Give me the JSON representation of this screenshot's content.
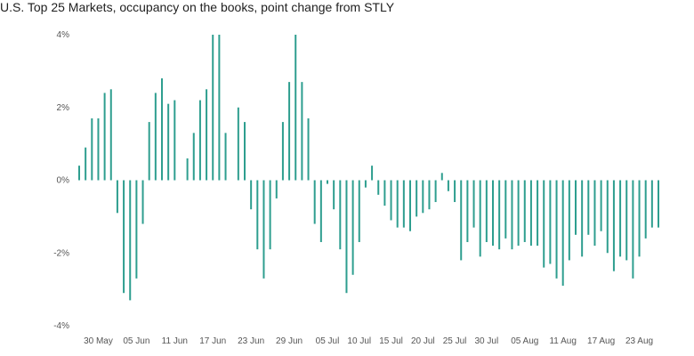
{
  "title": "U.S. Top 25 Markets, occupancy on the books, point change from STLY",
  "chart_data": {
    "type": "bar",
    "title": "U.S. Top 25 Markets, occupancy on the books, point change from STLY",
    "xlabel": "",
    "ylabel": "",
    "ylim": [
      -4,
      4
    ],
    "y_ticks": [
      4,
      2,
      0,
      -2,
      -4
    ],
    "y_tick_labels": [
      "4%",
      "2%",
      "0%",
      "-2%",
      "-4%"
    ],
    "grid": false,
    "bar_color": "#2e9e8f",
    "x_start_date": "2024-05-27",
    "x_tick_labels": [
      {
        "index": 3,
        "label": "30 May"
      },
      {
        "index": 9,
        "label": "05 Jun"
      },
      {
        "index": 15,
        "label": "11 Jun"
      },
      {
        "index": 21,
        "label": "17 Jun"
      },
      {
        "index": 27,
        "label": "23 Jun"
      },
      {
        "index": 33,
        "label": "29 Jun"
      },
      {
        "index": 39,
        "label": "05 Jul"
      },
      {
        "index": 44,
        "label": "10 Jul"
      },
      {
        "index": 49,
        "label": "15 Jul"
      },
      {
        "index": 54,
        "label": "20 Jul"
      },
      {
        "index": 59,
        "label": "25 Jul"
      },
      {
        "index": 64,
        "label": "30 Jul"
      },
      {
        "index": 70,
        "label": "05 Aug"
      },
      {
        "index": 76,
        "label": "11 Aug"
      },
      {
        "index": 82,
        "label": "17 Aug"
      },
      {
        "index": 88,
        "label": "23 Aug"
      }
    ],
    "values": [
      0.4,
      0.9,
      1.7,
      1.7,
      2.4,
      2.5,
      -0.9,
      -3.1,
      -3.3,
      -2.7,
      -1.2,
      1.6,
      2.4,
      2.8,
      2.1,
      2.2,
      0.0,
      0.6,
      1.3,
      2.2,
      2.5,
      4.0,
      4.0,
      1.3,
      0.0,
      2.0,
      1.6,
      -0.8,
      -1.9,
      -2.7,
      -1.9,
      -0.5,
      1.6,
      2.7,
      4.0,
      2.7,
      1.7,
      -1.2,
      -1.7,
      -0.1,
      -0.8,
      -1.9,
      -3.1,
      -2.6,
      -1.7,
      -0.2,
      0.4,
      -0.4,
      -0.7,
      -1.1,
      -1.3,
      -1.3,
      -1.4,
      -1.0,
      -0.9,
      -0.8,
      -0.6,
      0.2,
      -0.3,
      -0.6,
      -2.2,
      -1.7,
      -1.3,
      -2.1,
      -1.7,
      -1.8,
      -1.9,
      -1.6,
      -1.9,
      -1.8,
      -1.7,
      -1.8,
      -1.8,
      -2.4,
      -2.3,
      -2.7,
      -2.9,
      -2.2,
      -1.5,
      -2.1,
      -1.5,
      -1.8,
      -1.4,
      -2.0,
      -2.5,
      -2.1,
      -2.2,
      -2.7,
      -2.1,
      -1.6,
      -1.3,
      -1.3
    ]
  }
}
